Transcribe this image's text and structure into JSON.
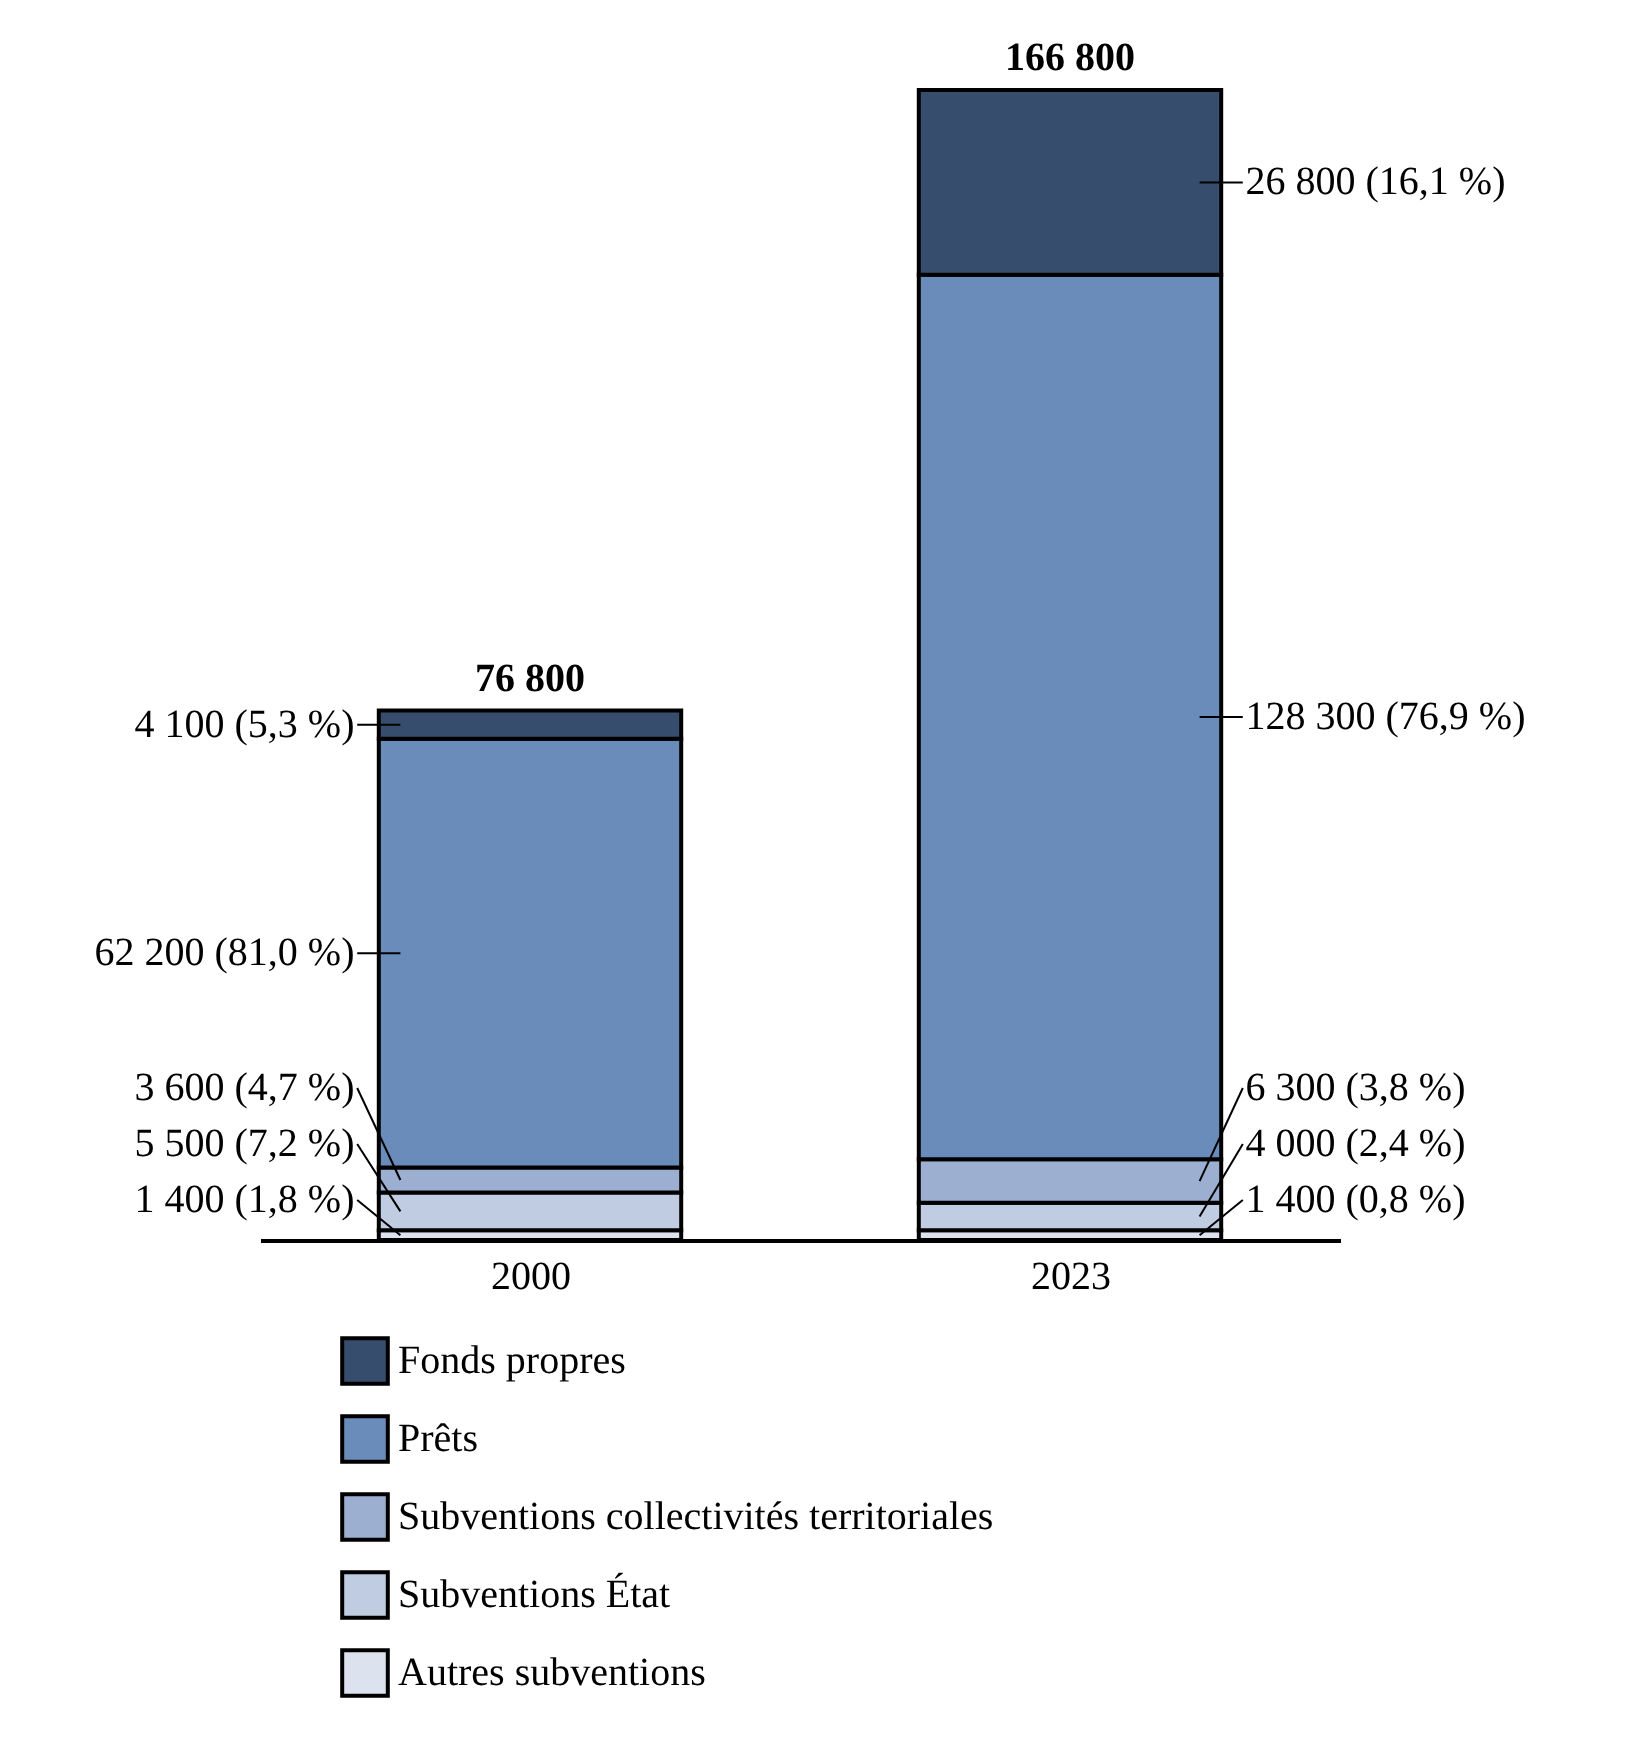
{
  "chart_data": {
    "type": "bar",
    "stacked": true,
    "categories": [
      "2000",
      "2023"
    ],
    "series": [
      {
        "name": "Autres subventions",
        "color": "#dce3ef",
        "values": [
          1400,
          1400
        ],
        "value_labels": [
          "1 400 (1,8 %)",
          "1 400 (0,8 %)"
        ]
      },
      {
        "name": "Subventions État",
        "color": "#c0cce1",
        "values": [
          5500,
          4000
        ],
        "value_labels": [
          "5 500 (7,2 %)",
          "4 000 (2,4 %)"
        ]
      },
      {
        "name": "Subventions collectivités territoriales",
        "color": "#9dafd0",
        "values": [
          3600,
          6300
        ],
        "value_labels": [
          "3 600 (4,7 %)",
          "6 300 (3,8 %)"
        ]
      },
      {
        "name": "Prêts",
        "color": "#6a8cba",
        "values": [
          62200,
          128300
        ],
        "value_labels": [
          "62 200 (81,0 %)",
          "128 300 (76,9 %)"
        ]
      },
      {
        "name": "Fonds propres",
        "color": "#374d6e",
        "values": [
          4100,
          26800
        ],
        "value_labels": [
          "4 100 (5,3 %)",
          "26 800 (16,1 %)"
        ]
      }
    ],
    "totals": [
      "76 800",
      "166 800"
    ],
    "legend": "bottom",
    "grid": false
  }
}
